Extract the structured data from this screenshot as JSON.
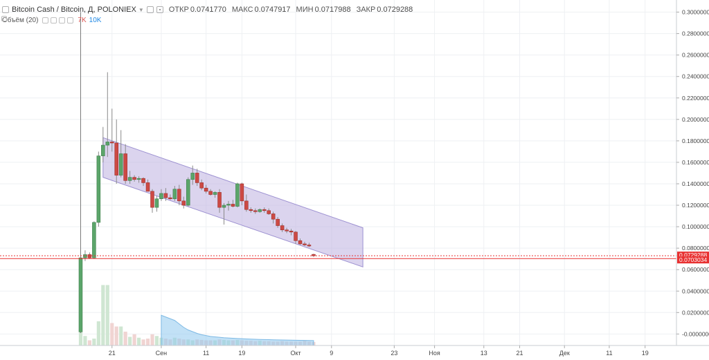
{
  "header": {
    "symbol": "Bitcoin Cash / Bitcoin, Д, POLONIEX",
    "open_label": "ОТКР",
    "open_value": "0.0741770",
    "high_label": "МАКС",
    "high_value": "0.0747917",
    "low_label": "МИН",
    "low_value": "0.0717988",
    "close_label": "ЗАКР",
    "close_value": "0.0729288"
  },
  "volume_indicator": {
    "label": "Объём (20)",
    "value_1": "7K",
    "value_2": "10K"
  },
  "colors": {
    "up": "#5ba56a",
    "down": "#cc4a44",
    "channel_fill": "#c3b8e2",
    "channel_line": "#9b8fd0",
    "price_line": "#e83030",
    "volume_ma": "#8fc9ee"
  },
  "chart_data": {
    "type": "candlestick",
    "ylim": [
      -0.012,
      0.31
    ],
    "y_ticks": [
      "0.3000000",
      "0.2800000",
      "0.2600000",
      "0.2400000",
      "0.2200000",
      "0.2000000",
      "0.1800000",
      "0.1600000",
      "0.1400000",
      "0.1200000",
      "0.1000000",
      "0.0800000",
      "0.0600000",
      "0.0400000",
      "0.0200000",
      "-0.0000000"
    ],
    "price_labels": [
      {
        "text": "0.0729288",
        "value": 0.0729288
      },
      {
        "text": "0.0703034",
        "value": 0.0703034
      }
    ],
    "x_ticks": [
      {
        "label": "21",
        "index": 7
      },
      {
        "label": "Сен",
        "index": 18
      },
      {
        "label": "11",
        "index": 28
      },
      {
        "label": "19",
        "index": 36
      },
      {
        "label": "Окт",
        "index": 48
      },
      {
        "label": "9",
        "index": 56
      },
      {
        "label": "23",
        "index": 70
      },
      {
        "label": "Ноя",
        "index": 79
      },
      {
        "label": "13",
        "index": 90
      },
      {
        "label": "21",
        "index": 98
      },
      {
        "label": "Дек",
        "index": 108
      },
      {
        "label": "11",
        "index": 118
      },
      {
        "label": "19",
        "index": 126
      }
    ],
    "x_range": [
      -18,
      133
    ],
    "candles": [
      {
        "o": 0.002,
        "h": 0.3,
        "l": 0.001,
        "c": 0.071
      },
      {
        "o": 0.071,
        "h": 0.078,
        "l": 0.068,
        "c": 0.074
      },
      {
        "o": 0.074,
        "h": 0.076,
        "l": 0.07,
        "c": 0.071
      },
      {
        "o": 0.071,
        "h": 0.105,
        "l": 0.07,
        "c": 0.104
      },
      {
        "o": 0.104,
        "h": 0.17,
        "l": 0.1,
        "c": 0.166
      },
      {
        "o": 0.166,
        "h": 0.193,
        "l": 0.16,
        "c": 0.176
      },
      {
        "o": 0.176,
        "h": 0.244,
        "l": 0.165,
        "c": 0.179
      },
      {
        "o": 0.179,
        "h": 0.21,
        "l": 0.17,
        "c": 0.178
      },
      {
        "o": 0.178,
        "h": 0.2,
        "l": 0.14,
        "c": 0.148
      },
      {
        "o": 0.148,
        "h": 0.19,
        "l": 0.146,
        "c": 0.168
      },
      {
        "o": 0.168,
        "h": 0.177,
        "l": 0.14,
        "c": 0.143
      },
      {
        "o": 0.143,
        "h": 0.152,
        "l": 0.14,
        "c": 0.146
      },
      {
        "o": 0.146,
        "h": 0.148,
        "l": 0.142,
        "c": 0.144
      },
      {
        "o": 0.144,
        "h": 0.147,
        "l": 0.141,
        "c": 0.145
      },
      {
        "o": 0.145,
        "h": 0.146,
        "l": 0.138,
        "c": 0.141
      },
      {
        "o": 0.141,
        "h": 0.144,
        "l": 0.135,
        "c": 0.133
      },
      {
        "o": 0.133,
        "h": 0.135,
        "l": 0.113,
        "c": 0.118
      },
      {
        "o": 0.118,
        "h": 0.129,
        "l": 0.114,
        "c": 0.126
      },
      {
        "o": 0.126,
        "h": 0.135,
        "l": 0.124,
        "c": 0.131
      },
      {
        "o": 0.131,
        "h": 0.136,
        "l": 0.124,
        "c": 0.127
      },
      {
        "o": 0.127,
        "h": 0.13,
        "l": 0.125,
        "c": 0.126
      },
      {
        "o": 0.126,
        "h": 0.138,
        "l": 0.124,
        "c": 0.135
      },
      {
        "o": 0.135,
        "h": 0.139,
        "l": 0.12,
        "c": 0.124
      },
      {
        "o": 0.124,
        "h": 0.128,
        "l": 0.117,
        "c": 0.12
      },
      {
        "o": 0.12,
        "h": 0.146,
        "l": 0.119,
        "c": 0.144
      },
      {
        "o": 0.144,
        "h": 0.157,
        "l": 0.139,
        "c": 0.15
      },
      {
        "o": 0.15,
        "h": 0.154,
        "l": 0.138,
        "c": 0.141
      },
      {
        "o": 0.141,
        "h": 0.144,
        "l": 0.134,
        "c": 0.136
      },
      {
        "o": 0.136,
        "h": 0.139,
        "l": 0.131,
        "c": 0.133
      },
      {
        "o": 0.133,
        "h": 0.135,
        "l": 0.129,
        "c": 0.13
      },
      {
        "o": 0.13,
        "h": 0.133,
        "l": 0.127,
        "c": 0.132
      },
      {
        "o": 0.132,
        "h": 0.135,
        "l": 0.113,
        "c": 0.118
      },
      {
        "o": 0.118,
        "h": 0.122,
        "l": 0.102,
        "c": 0.12
      },
      {
        "o": 0.12,
        "h": 0.124,
        "l": 0.115,
        "c": 0.121
      },
      {
        "o": 0.121,
        "h": 0.125,
        "l": 0.118,
        "c": 0.119
      },
      {
        "o": 0.119,
        "h": 0.141,
        "l": 0.118,
        "c": 0.14
      },
      {
        "o": 0.14,
        "h": 0.141,
        "l": 0.12,
        "c": 0.124
      },
      {
        "o": 0.124,
        "h": 0.13,
        "l": 0.114,
        "c": 0.116
      },
      {
        "o": 0.116,
        "h": 0.118,
        "l": 0.113,
        "c": 0.115
      },
      {
        "o": 0.115,
        "h": 0.117,
        "l": 0.112,
        "c": 0.114
      },
      {
        "o": 0.114,
        "h": 0.117,
        "l": 0.113,
        "c": 0.116
      },
      {
        "o": 0.116,
        "h": 0.118,
        "l": 0.113,
        "c": 0.115
      },
      {
        "o": 0.115,
        "h": 0.117,
        "l": 0.111,
        "c": 0.112
      },
      {
        "o": 0.112,
        "h": 0.114,
        "l": 0.103,
        "c": 0.107
      },
      {
        "o": 0.107,
        "h": 0.109,
        "l": 0.099,
        "c": 0.101
      },
      {
        "o": 0.101,
        "h": 0.103,
        "l": 0.095,
        "c": 0.097
      },
      {
        "o": 0.097,
        "h": 0.099,
        "l": 0.094,
        "c": 0.096
      },
      {
        "o": 0.096,
        "h": 0.098,
        "l": 0.092,
        "c": 0.095
      },
      {
        "o": 0.095,
        "h": 0.096,
        "l": 0.084,
        "c": 0.087
      },
      {
        "o": 0.087,
        "h": 0.089,
        "l": 0.083,
        "c": 0.084
      },
      {
        "o": 0.084,
        "h": 0.086,
        "l": 0.082,
        "c": 0.083
      },
      {
        "o": 0.083,
        "h": 0.085,
        "l": 0.081,
        "c": 0.082
      },
      {
        "o": 0.0742,
        "h": 0.0748,
        "l": 0.0718,
        "c": 0.0729
      }
    ],
    "volume_max": 10000,
    "volume": [
      1800,
      1100,
      600,
      800,
      2800,
      7000,
      7000,
      2600,
      2200,
      2200,
      1600,
      1000,
      1300,
      900,
      700,
      800,
      1300,
      1100,
      900,
      800,
      700,
      900,
      800,
      700,
      700,
      600,
      700,
      650,
      600,
      600,
      600,
      700,
      650,
      600,
      600,
      650,
      600,
      550,
      550,
      500,
      550,
      500,
      500,
      450,
      450,
      500,
      450,
      450,
      450,
      450,
      550,
      450,
      400
    ],
    "volume_ma": [
      null,
      null,
      null,
      null,
      null,
      null,
      null,
      null,
      null,
      null,
      null,
      null,
      null,
      null,
      null,
      null,
      null,
      null,
      3500,
      3300,
      3100,
      2900,
      2500,
      2100,
      1800,
      1600,
      1400,
      1250,
      1150,
      1050,
      1000,
      950,
      900,
      870,
      840,
      810,
      790,
      760,
      740,
      720,
      700,
      690,
      680,
      660,
      650,
      640,
      630,
      620,
      610,
      600,
      590,
      580,
      570
    ],
    "channel": {
      "upper_start": {
        "index": 5,
        "value": 0.183
      },
      "upper_end": {
        "index": 63,
        "value": 0.099
      },
      "lower_start": {
        "index": 5,
        "value": 0.146
      },
      "lower_end": {
        "index": 63,
        "value": 0.0625
      }
    }
  }
}
